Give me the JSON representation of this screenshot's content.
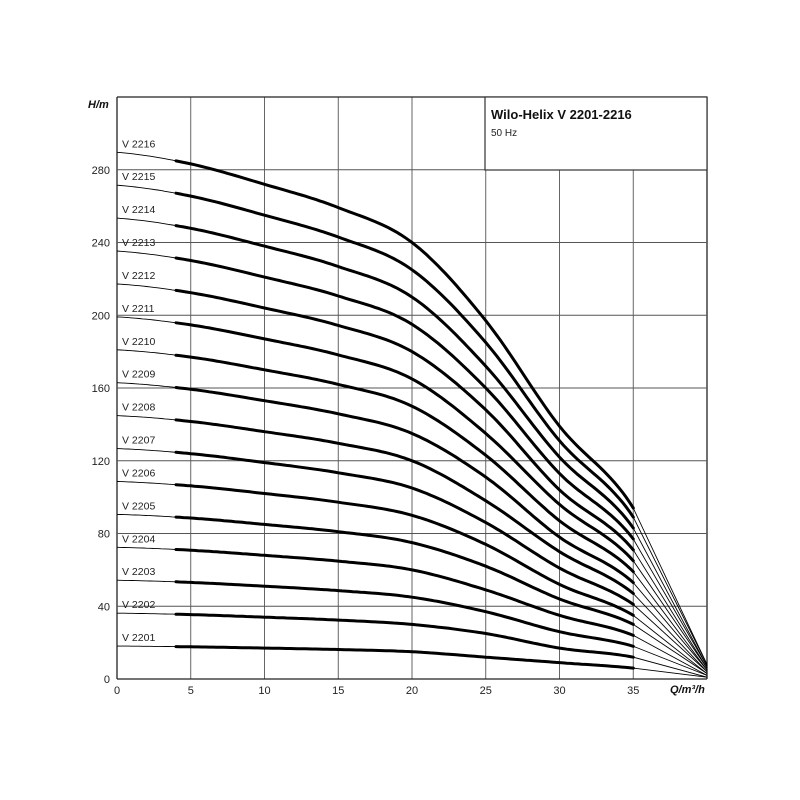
{
  "chart_data": {
    "type": "line",
    "title": "Wilo-Helix V 2201-2216",
    "subtitle": "50 Hz",
    "xlabel": "Q/m³/h",
    "ylabel": "H/m",
    "xlim": [
      0,
      40
    ],
    "ylim": [
      0,
      320
    ],
    "x_ticks": [
      "0",
      "5",
      "10",
      "15",
      "20",
      "25",
      "30",
      "35"
    ],
    "y_ticks": [
      "0",
      "40",
      "80",
      "120",
      "160",
      "200",
      "240",
      "280"
    ],
    "grid": true,
    "bold_range_q": [
      4,
      35
    ],
    "x": [
      0,
      5,
      10,
      15,
      20,
      25,
      30,
      35,
      40
    ],
    "series": [
      {
        "name": "V 2201",
        "values": [
          18.1,
          17.7,
          17.0,
          16.2,
          15.0,
          12,
          9,
          6,
          1
        ]
      },
      {
        "name": "V 2202",
        "values": [
          36.2,
          35.4,
          34.0,
          32.4,
          30.0,
          25,
          17,
          12,
          1
        ]
      },
      {
        "name": "V 2203",
        "values": [
          54.3,
          53.1,
          51.0,
          48.6,
          45.0,
          37,
          26,
          18,
          2
        ]
      },
      {
        "name": "V 2204",
        "values": [
          72.4,
          70.8,
          68.0,
          64.8,
          60.0,
          49,
          35,
          24,
          2
        ]
      },
      {
        "name": "V 2205",
        "values": [
          90.5,
          88.5,
          85.0,
          81.0,
          75.0,
          62,
          44,
          30,
          3
        ]
      },
      {
        "name": "V 2206",
        "values": [
          108.6,
          106.2,
          102.0,
          97.2,
          90.0,
          74,
          52,
          35,
          3
        ]
      },
      {
        "name": "V 2207",
        "values": [
          126.7,
          123.9,
          119.0,
          113.4,
          105.0,
          86,
          61,
          41,
          4
        ]
      },
      {
        "name": "V 2208",
        "values": [
          144.8,
          141.6,
          136.0,
          129.6,
          120.0,
          98,
          70,
          47,
          4
        ]
      },
      {
        "name": "V 2209",
        "values": [
          162.9,
          159.3,
          153.0,
          145.8,
          135.0,
          111,
          78,
          53,
          5
        ]
      },
      {
        "name": "V 2210",
        "values": [
          181.0,
          177.0,
          170.0,
          162.0,
          150.0,
          123,
          87,
          59,
          5
        ]
      },
      {
        "name": "V 2211",
        "values": [
          199.1,
          194.7,
          187.0,
          178.2,
          165.0,
          135,
          96,
          65,
          6
        ]
      },
      {
        "name": "V 2212",
        "values": [
          217.2,
          212.4,
          204.0,
          194.4,
          180.0,
          148,
          104,
          71,
          6
        ]
      },
      {
        "name": "V 2213",
        "values": [
          235.3,
          230.1,
          221.0,
          210.6,
          195.0,
          160,
          113,
          77,
          7
        ]
      },
      {
        "name": "V 2214",
        "values": [
          253.4,
          247.8,
          238.0,
          226.8,
          210.0,
          172,
          122,
          83,
          7
        ]
      },
      {
        "name": "V 2215",
        "values": [
          271.5,
          265.5,
          255.0,
          243.0,
          225.0,
          185,
          131,
          89,
          8
        ]
      },
      {
        "name": "V 2216",
        "values": [
          289.6,
          283.2,
          272.0,
          259.2,
          240.0,
          197,
          139,
          94,
          8
        ]
      }
    ],
    "colors": {
      "curve": "#000000",
      "grid": "#555555"
    }
  }
}
